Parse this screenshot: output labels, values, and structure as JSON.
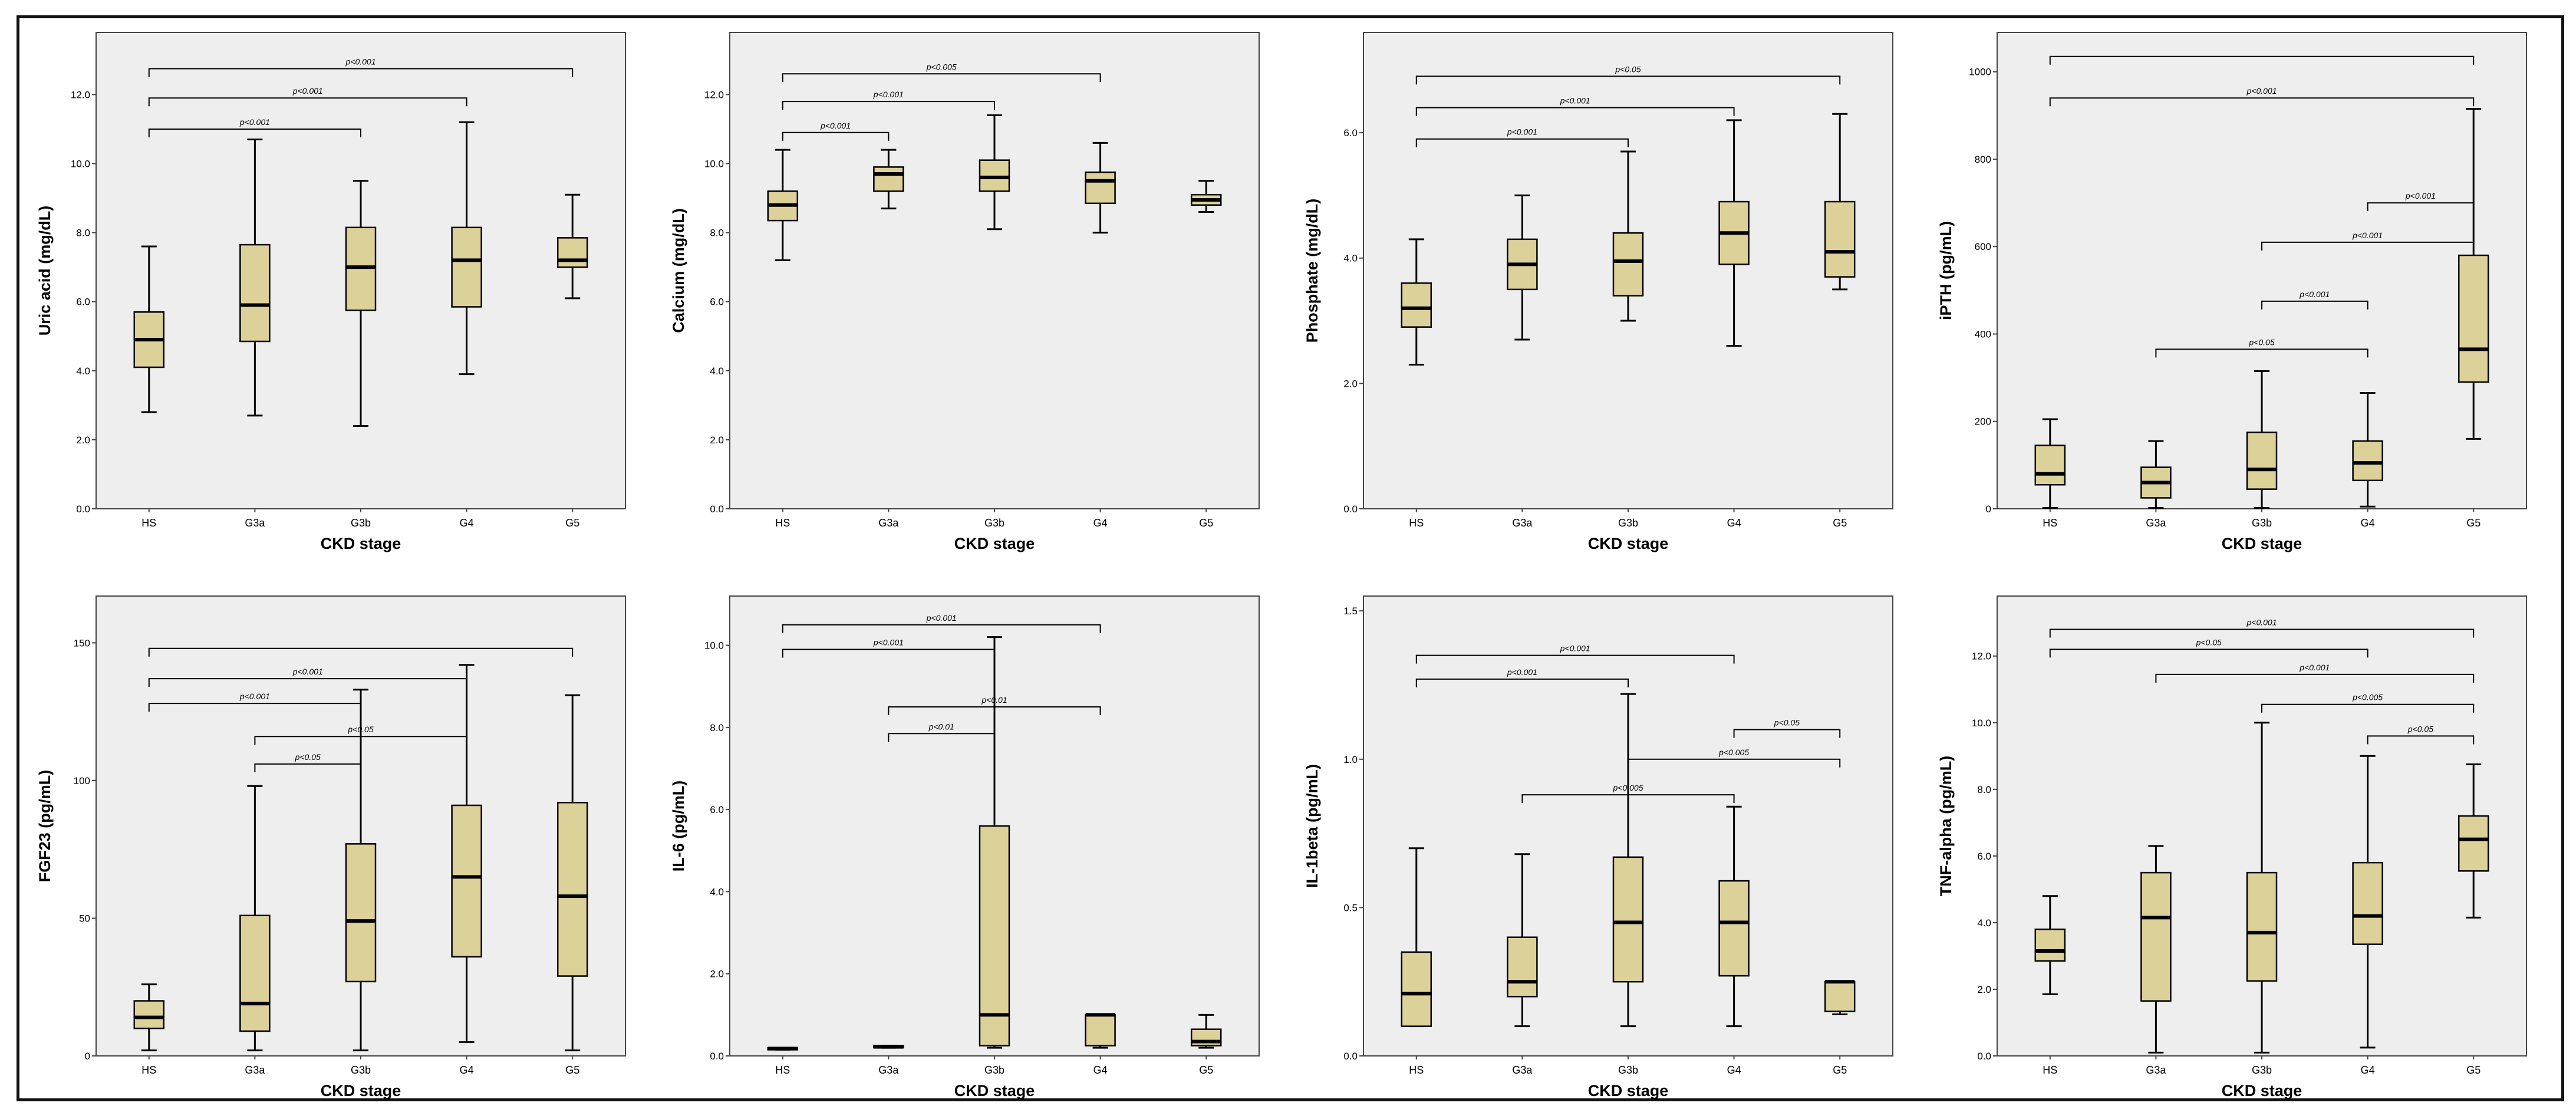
{
  "figure": {
    "description_label": "Box plots of biomarkers by CKD stage"
  },
  "colors": {
    "box_fill": "#ddd19a",
    "plot_bg": "#eeeeee",
    "line": "#000000"
  },
  "chart_data": [
    {
      "type": "box",
      "id": "uric-acid",
      "title": "",
      "xlabel": "CKD stage",
      "ylabel": "Uric acid (mg/dL)",
      "categories": [
        "HS",
        "G3a",
        "G3b",
        "G4",
        "G5"
      ],
      "ylim": [
        0,
        13.8
      ],
      "yticks": [
        0,
        2,
        4,
        6,
        8,
        10,
        12
      ],
      "ytick_labels": [
        "0.0",
        "2.0",
        "4.0",
        "6.0",
        "8.0",
        "10.0",
        "12.0"
      ],
      "boxes": [
        {
          "min": 2.8,
          "q1": 4.1,
          "median": 4.9,
          "q3": 5.7,
          "max": 7.6
        },
        {
          "min": 2.7,
          "q1": 4.85,
          "median": 5.9,
          "q3": 7.65,
          "max": 10.7
        },
        {
          "min": 2.4,
          "q1": 5.75,
          "median": 7.0,
          "q3": 8.15,
          "max": 9.5
        },
        {
          "min": 3.9,
          "q1": 5.85,
          "median": 7.2,
          "q3": 8.15,
          "max": 11.2
        },
        {
          "min": 6.1,
          "q1": 7.0,
          "median": 7.2,
          "q3": 7.85,
          "max": 9.1
        }
      ],
      "annotations": [
        {
          "from": 0,
          "to": 2,
          "y": 11.0,
          "label": "p<0.001"
        },
        {
          "from": 0,
          "to": 3,
          "y": 11.9,
          "label": "p<0.001"
        },
        {
          "from": 0,
          "to": 4,
          "y": 12.75,
          "label": "p<0.001"
        }
      ]
    },
    {
      "type": "box",
      "id": "calcium",
      "title": "",
      "xlabel": "CKD stage",
      "ylabel": "Calcium (mg/dL)",
      "categories": [
        "HS",
        "G3a",
        "G3b",
        "G4",
        "G5"
      ],
      "ylim": [
        0,
        13.8
      ],
      "yticks": [
        0,
        2,
        4,
        6,
        8,
        10,
        12
      ],
      "ytick_labels": [
        "0.0",
        "2.0",
        "4.0",
        "6.0",
        "8.0",
        "10.0",
        "12.0"
      ],
      "boxes": [
        {
          "min": 7.2,
          "q1": 8.35,
          "median": 8.8,
          "q3": 9.2,
          "max": 10.4
        },
        {
          "min": 8.7,
          "q1": 9.2,
          "median": 9.7,
          "q3": 9.9,
          "max": 10.4
        },
        {
          "min": 8.1,
          "q1": 9.2,
          "median": 9.6,
          "q3": 10.1,
          "max": 11.4
        },
        {
          "min": 8.0,
          "q1": 8.85,
          "median": 9.5,
          "q3": 9.75,
          "max": 10.6
        },
        {
          "min": 8.6,
          "q1": 8.8,
          "median": 8.95,
          "q3": 9.1,
          "max": 9.5
        }
      ],
      "annotations": [
        {
          "from": 0,
          "to": 1,
          "y": 10.9,
          "label": "p<0.001"
        },
        {
          "from": 0,
          "to": 2,
          "y": 11.8,
          "label": "p<0.001"
        },
        {
          "from": 0,
          "to": 3,
          "y": 12.6,
          "label": "p<0.005"
        }
      ]
    },
    {
      "type": "box",
      "id": "phosphate",
      "title": "",
      "xlabel": "CKD stage",
      "ylabel": "Phosphate (mg/dL)",
      "categories": [
        "HS",
        "G3a",
        "G3b",
        "G4",
        "G5"
      ],
      "ylim": [
        0,
        7.6
      ],
      "yticks": [
        0,
        2,
        4,
        6
      ],
      "ytick_labels": [
        "0.0",
        "2.0",
        "4.0",
        "6.0"
      ],
      "boxes": [
        {
          "min": 2.3,
          "q1": 2.9,
          "median": 3.2,
          "q3": 3.6,
          "max": 4.3
        },
        {
          "min": 2.7,
          "q1": 3.5,
          "median": 3.9,
          "q3": 4.3,
          "max": 5.0
        },
        {
          "min": 3.0,
          "q1": 3.4,
          "median": 3.95,
          "q3": 4.4,
          "max": 5.7
        },
        {
          "min": 2.6,
          "q1": 3.9,
          "median": 4.4,
          "q3": 4.9,
          "max": 6.2
        },
        {
          "min": 3.5,
          "q1": 3.7,
          "median": 4.1,
          "q3": 4.9,
          "max": 6.3
        }
      ],
      "annotations": [
        {
          "from": 0,
          "to": 2,
          "y": 5.9,
          "label": "p<0.001"
        },
        {
          "from": 0,
          "to": 3,
          "y": 6.4,
          "label": "p<0.001"
        },
        {
          "from": 0,
          "to": 4,
          "y": 6.9,
          "label": "p<0.05"
        }
      ]
    },
    {
      "type": "box",
      "id": "ipth",
      "title": "",
      "xlabel": "CKD stage",
      "ylabel": "iPTH (pg/mL)",
      "categories": [
        "HS",
        "G3a",
        "G3b",
        "G4",
        "G5"
      ],
      "ylim": [
        0,
        1090
      ],
      "yticks": [
        0,
        200,
        400,
        600,
        800,
        1000
      ],
      "ytick_labels": [
        "0",
        "200",
        "400",
        "600",
        "800",
        "1000"
      ],
      "boxes": [
        {
          "min": 2,
          "q1": 55,
          "median": 80,
          "q3": 145,
          "max": 205
        },
        {
          "min": 2,
          "q1": 25,
          "median": 60,
          "q3": 95,
          "max": 155
        },
        {
          "min": 2,
          "q1": 45,
          "median": 90,
          "q3": 175,
          "max": 315
        },
        {
          "min": 5,
          "q1": 65,
          "median": 105,
          "q3": 155,
          "max": 265
        },
        {
          "min": 160,
          "q1": 290,
          "median": 365,
          "q3": 580,
          "max": 915
        }
      ],
      "annotations": [
        {
          "from": 1,
          "to": 3,
          "y": 365,
          "label": "p<0.05"
        },
        {
          "from": 2,
          "to": 3,
          "y": 475,
          "label": "p<0.001"
        },
        {
          "from": 2,
          "to": 4,
          "y": 610,
          "label": "p<0.001"
        },
        {
          "from": 3,
          "to": 4,
          "y": 700,
          "label": "p<0.001"
        },
        {
          "from": 0,
          "to": 4,
          "y": 940,
          "label": "p<0.001"
        },
        {
          "from": 0,
          "to": 4,
          "y": 1035,
          "label": ""
        }
      ]
    },
    {
      "type": "box",
      "id": "fgf23",
      "title": "",
      "xlabel": "CKD stage",
      "ylabel": "FGF23 (pg/mL)",
      "categories": [
        "HS",
        "G3a",
        "G3b",
        "G4",
        "G5"
      ],
      "ylim": [
        0,
        167
      ],
      "yticks": [
        0,
        50,
        100,
        150
      ],
      "ytick_labels": [
        "0",
        "50",
        "100",
        "150"
      ],
      "boxes": [
        {
          "min": 2,
          "q1": 10,
          "median": 14,
          "q3": 20,
          "max": 26
        },
        {
          "min": 2,
          "q1": 9,
          "median": 19,
          "q3": 51,
          "max": 98
        },
        {
          "min": 2,
          "q1": 27,
          "median": 49,
          "q3": 77,
          "max": 133
        },
        {
          "min": 5,
          "q1": 36,
          "median": 65,
          "q3": 91,
          "max": 142
        },
        {
          "min": 2,
          "q1": 29,
          "median": 58,
          "q3": 92,
          "max": 131
        }
      ],
      "annotations": [
        {
          "from": 1,
          "to": 2,
          "y": 106,
          "label": "p<0.05"
        },
        {
          "from": 1,
          "to": 3,
          "y": 116,
          "label": "p<0.05"
        },
        {
          "from": 0,
          "to": 2,
          "y": 128,
          "label": "p<0.001"
        },
        {
          "from": 0,
          "to": 3,
          "y": 137,
          "label": "p<0.001"
        },
        {
          "from": 0,
          "to": 4,
          "y": 148,
          "label": ""
        }
      ]
    },
    {
      "type": "box",
      "id": "il6",
      "title": "",
      "xlabel": "CKD stage",
      "ylabel": "IL-6 (pg/mL)",
      "categories": [
        "HS",
        "G3a",
        "G3b",
        "G4",
        "G5"
      ],
      "ylim": [
        0,
        11.2
      ],
      "yticks": [
        0,
        2,
        4,
        6,
        8,
        10
      ],
      "ytick_labels": [
        "0.0",
        "2.0",
        "4.0",
        "6.0",
        "8.0",
        "10.0"
      ],
      "boxes": [
        {
          "min": 0.15,
          "q1": 0.15,
          "median": 0.18,
          "q3": 0.2,
          "max": 0.2
        },
        {
          "min": 0.2,
          "q1": 0.2,
          "median": 0.22,
          "q3": 0.25,
          "max": 0.25
        },
        {
          "min": 0.2,
          "q1": 0.25,
          "median": 1.0,
          "q3": 5.6,
          "max": 10.2
        },
        {
          "min": 0.2,
          "q1": 0.25,
          "median": 1.0,
          "q3": 1.0,
          "max": 1.0
        },
        {
          "min": 0.2,
          "q1": 0.25,
          "median": 0.35,
          "q3": 0.65,
          "max": 1.0
        }
      ],
      "annotations": [
        {
          "from": 1,
          "to": 2,
          "y": 7.85,
          "label": "p<0.01"
        },
        {
          "from": 1,
          "to": 3,
          "y": 8.5,
          "label": "p<0.01"
        },
        {
          "from": 0,
          "to": 2,
          "y": 9.9,
          "label": "p<0.001"
        },
        {
          "from": 0,
          "to": 3,
          "y": 10.5,
          "label": "p<0.001"
        }
      ]
    },
    {
      "type": "box",
      "id": "il1beta",
      "title": "",
      "xlabel": "CKD stage",
      "ylabel": "IL-1beta (pg/mL)",
      "categories": [
        "HS",
        "G3a",
        "G3b",
        "G4",
        "G5"
      ],
      "ylim": [
        0,
        1.55
      ],
      "yticks": [
        0,
        0.5,
        1.0,
        1.5
      ],
      "ytick_labels": [
        "0.0",
        "0.5",
        "1.0",
        "1.5"
      ],
      "boxes": [
        {
          "min": 0.1,
          "q1": 0.1,
          "median": 0.21,
          "q3": 0.35,
          "max": 0.7
        },
        {
          "min": 0.1,
          "q1": 0.2,
          "median": 0.25,
          "q3": 0.4,
          "max": 0.68
        },
        {
          "min": 0.1,
          "q1": 0.25,
          "median": 0.45,
          "q3": 0.67,
          "max": 1.22
        },
        {
          "min": 0.1,
          "q1": 0.27,
          "median": 0.45,
          "q3": 0.59,
          "max": 0.84
        },
        {
          "min": 0.14,
          "q1": 0.15,
          "median": 0.25,
          "q3": 0.25,
          "max": 0.25
        }
      ],
      "annotations": [
        {
          "from": 1,
          "to": 3,
          "y": 0.88,
          "label": "p<0.005"
        },
        {
          "from": 2,
          "to": 4,
          "y": 1.0,
          "label": "p<0.005"
        },
        {
          "from": 3,
          "to": 4,
          "y": 1.1,
          "label": "p<0.05"
        },
        {
          "from": 0,
          "to": 2,
          "y": 1.27,
          "label": "p<0.001"
        },
        {
          "from": 0,
          "to": 3,
          "y": 1.35,
          "label": "p<0.001"
        }
      ]
    },
    {
      "type": "box",
      "id": "tnf-alpha",
      "title": "",
      "xlabel": "CKD stage",
      "ylabel": "TNF-alpha (pg/mL)",
      "categories": [
        "HS",
        "G3a",
        "G3b",
        "G4",
        "G5"
      ],
      "ylim": [
        0,
        13.8
      ],
      "yticks": [
        0,
        2,
        4,
        6,
        8,
        10,
        12
      ],
      "ytick_labels": [
        "0.0",
        "2.0",
        "4.0",
        "6.0",
        "8.0",
        "10.0",
        "12.0"
      ],
      "boxes": [
        {
          "min": 1.85,
          "q1": 2.85,
          "median": 3.15,
          "q3": 3.8,
          "max": 4.8
        },
        {
          "min": 0.1,
          "q1": 1.65,
          "median": 4.15,
          "q3": 5.5,
          "max": 6.3
        },
        {
          "min": 0.1,
          "q1": 2.25,
          "median": 3.7,
          "q3": 5.5,
          "max": 10.0
        },
        {
          "min": 0.25,
          "q1": 3.35,
          "median": 4.2,
          "q3": 5.8,
          "max": 9.0
        },
        {
          "min": 4.15,
          "q1": 5.55,
          "median": 6.5,
          "q3": 7.2,
          "max": 8.75
        }
      ],
      "annotations": [
        {
          "from": 3,
          "to": 4,
          "y": 9.6,
          "label": "p<0.05"
        },
        {
          "from": 2,
          "to": 4,
          "y": 10.55,
          "label": "p<0.005"
        },
        {
          "from": 1,
          "to": 4,
          "y": 11.45,
          "label": "p<0.001"
        },
        {
          "from": 0,
          "to": 3,
          "y": 12.2,
          "label": "p<0.05"
        },
        {
          "from": 0,
          "to": 4,
          "y": 12.8,
          "label": "p<0.001"
        }
      ]
    }
  ]
}
